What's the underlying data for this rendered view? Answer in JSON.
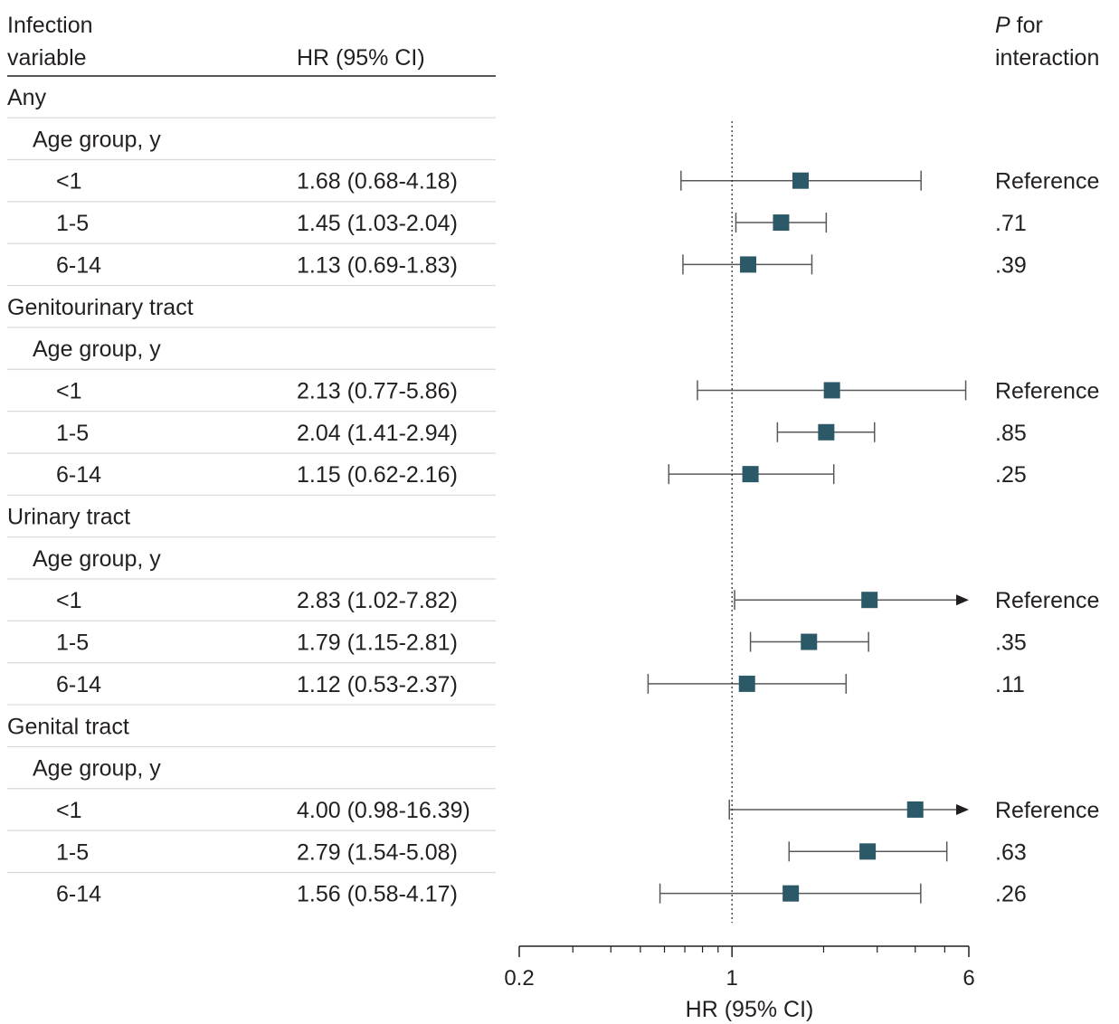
{
  "header": {
    "variable_line1": "Infection",
    "variable_line2": "variable",
    "hr": "HR (95% CI)",
    "p_line1_italic": "P",
    "p_line1_rest": " for",
    "p_line2": "interaction"
  },
  "rows": [
    {
      "level": 0,
      "label": "Any"
    },
    {
      "level": 1,
      "label": "Age group, y"
    },
    {
      "level": 2,
      "label": "<1",
      "hr_text": "1.68 (0.68-4.18)",
      "p": "Reference"
    },
    {
      "level": 2,
      "label": "1-5",
      "hr_text": "1.45 (1.03-2.04)",
      "p": ".71"
    },
    {
      "level": 2,
      "label": "6-14",
      "hr_text": "1.13 (0.69-1.83)",
      "p": ".39"
    },
    {
      "level": 0,
      "label": "Genitourinary tract"
    },
    {
      "level": 1,
      "label": "Age group, y"
    },
    {
      "level": 2,
      "label": "<1",
      "hr_text": "2.13 (0.77-5.86)",
      "p": "Reference"
    },
    {
      "level": 2,
      "label": "1-5",
      "hr_text": "2.04 (1.41-2.94)",
      "p": ".85"
    },
    {
      "level": 2,
      "label": "6-14",
      "hr_text": "1.15 (0.62-2.16)",
      "p": ".25"
    },
    {
      "level": 0,
      "label": "Urinary tract"
    },
    {
      "level": 1,
      "label": "Age group, y"
    },
    {
      "level": 2,
      "label": "<1",
      "hr_text": "2.83 (1.02-7.82)",
      "p": "Reference"
    },
    {
      "level": 2,
      "label": "1-5",
      "hr_text": "1.79 (1.15-2.81)",
      "p": ".35"
    },
    {
      "level": 2,
      "label": "6-14",
      "hr_text": "1.12 (0.53-2.37)",
      "p": ".11"
    },
    {
      "level": 0,
      "label": "Genital tract"
    },
    {
      "level": 1,
      "label": "Age group, y"
    },
    {
      "level": 2,
      "label": "<1",
      "hr_text": "4.00 (0.98-16.39)",
      "p": "Reference"
    },
    {
      "level": 2,
      "label": "1-5",
      "hr_text": "2.79 (1.54-5.08)",
      "p": ".63"
    },
    {
      "level": 2,
      "label": "6-14",
      "hr_text": "1.56 (0.58-4.17)",
      "p": ".26"
    }
  ],
  "chart_data": {
    "type": "forest",
    "xlabel": "HR (95% CI)",
    "x_scale": "log",
    "xlim": [
      0.2,
      6
    ],
    "reference_line": 1,
    "tick_labels": [
      {
        "value": 0.2,
        "label": "0.2"
      },
      {
        "value": 1,
        "label": "1"
      },
      {
        "value": 6,
        "label": "6"
      }
    ],
    "minor_ticks": [
      0.3,
      0.4,
      0.5,
      0.6,
      0.7,
      0.8,
      0.9,
      2,
      3,
      4,
      5
    ],
    "series": [
      {
        "group": "Any",
        "age_group": "<1",
        "hr": 1.68,
        "lower": 0.68,
        "upper": 4.18,
        "p": "Reference"
      },
      {
        "group": "Any",
        "age_group": "1-5",
        "hr": 1.45,
        "lower": 1.03,
        "upper": 2.04,
        "p": ".71"
      },
      {
        "group": "Any",
        "age_group": "6-14",
        "hr": 1.13,
        "lower": 0.69,
        "upper": 1.83,
        "p": ".39"
      },
      {
        "group": "Genitourinary tract",
        "age_group": "<1",
        "hr": 2.13,
        "lower": 0.77,
        "upper": 5.86,
        "p": "Reference"
      },
      {
        "group": "Genitourinary tract",
        "age_group": "1-5",
        "hr": 2.04,
        "lower": 1.41,
        "upper": 2.94,
        "p": ".85"
      },
      {
        "group": "Genitourinary tract",
        "age_group": "6-14",
        "hr": 1.15,
        "lower": 0.62,
        "upper": 2.16,
        "p": ".25"
      },
      {
        "group": "Urinary tract",
        "age_group": "<1",
        "hr": 2.83,
        "lower": 1.02,
        "upper": 7.82,
        "p": "Reference"
      },
      {
        "group": "Urinary tract",
        "age_group": "1-5",
        "hr": 1.79,
        "lower": 1.15,
        "upper": 2.81,
        "p": ".35"
      },
      {
        "group": "Urinary tract",
        "age_group": "6-14",
        "hr": 1.12,
        "lower": 0.53,
        "upper": 2.37,
        "p": ".11"
      },
      {
        "group": "Genital tract",
        "age_group": "<1",
        "hr": 4.0,
        "lower": 0.98,
        "upper": 16.39,
        "p": "Reference"
      },
      {
        "group": "Genital tract",
        "age_group": "1-5",
        "hr": 2.79,
        "lower": 1.54,
        "upper": 5.08,
        "p": ".63"
      },
      {
        "group": "Genital tract",
        "age_group": "6-14",
        "hr": 1.56,
        "lower": 0.58,
        "upper": 4.17,
        "p": ".26"
      }
    ],
    "colors": {
      "marker": "#2b5968",
      "line": "#58595b",
      "text": "#231f20",
      "divider": "#d9d9d9"
    }
  }
}
